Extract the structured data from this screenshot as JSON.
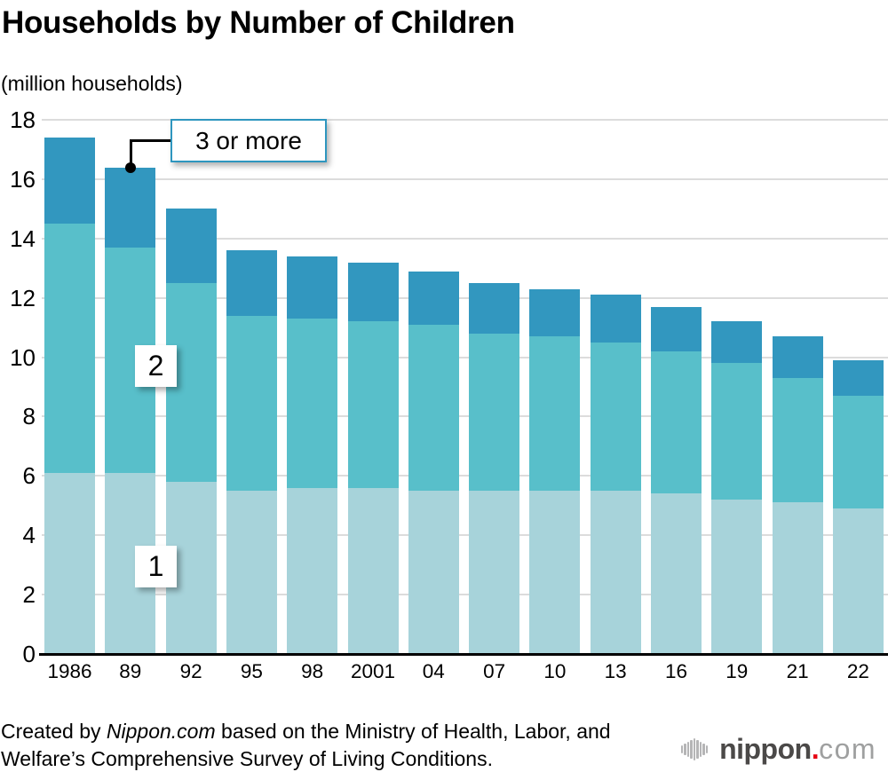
{
  "chart_data": {
    "type": "bar",
    "stacked": true,
    "title": "Households by Number of Children",
    "unit_label": "(million households)",
    "categories": [
      "1986",
      "89",
      "92",
      "95",
      "98",
      "2001",
      "04",
      "07",
      "10",
      "13",
      "16",
      "19",
      "21",
      "22"
    ],
    "series": [
      {
        "name": "1",
        "color": "#a7d3da",
        "values": [
          6.1,
          6.1,
          5.8,
          5.5,
          5.6,
          5.6,
          5.5,
          5.5,
          5.5,
          5.5,
          5.4,
          5.2,
          5.1,
          4.9
        ]
      },
      {
        "name": "2",
        "color": "#58bfca",
        "values": [
          8.4,
          7.6,
          6.7,
          5.9,
          5.7,
          5.6,
          5.6,
          5.3,
          5.2,
          5.0,
          4.8,
          4.6,
          4.2,
          3.8
        ]
      },
      {
        "name": "3 or more",
        "color": "#3297bf",
        "values": [
          2.9,
          2.7,
          2.5,
          2.2,
          2.1,
          2.0,
          1.8,
          1.7,
          1.6,
          1.6,
          1.5,
          1.4,
          1.4,
          1.2
        ]
      }
    ],
    "totals": [
      17.4,
      16.4,
      15.0,
      13.6,
      13.4,
      13.2,
      12.9,
      12.5,
      12.3,
      12.1,
      11.7,
      11.2,
      10.7,
      9.9
    ],
    "ylim": [
      0,
      18
    ],
    "yticks": [
      0,
      2,
      4,
      6,
      8,
      10,
      12,
      14,
      16,
      18
    ],
    "grid": "horizontal",
    "legend_position": "on-chart labels"
  },
  "footer": {
    "line1_prefix": "Created by ",
    "line1_italic": "Nippon.com",
    "line1_rest": " based on the Ministry of Health, Labor, and",
    "line2": "Welfare’s Comprehensive Survey of Living Conditions."
  },
  "logo": {
    "brand": "nippon",
    "dot": ".",
    "tld": "com"
  },
  "colors": {
    "grid": "#dcdcdc",
    "axis": "#000000",
    "callout_border": "#2e96bf",
    "connector": "#000000",
    "logo_brand": "#4b4948",
    "logo_dot": "#e60012",
    "logo_tld": "#9fa0a0",
    "logo_wave": "#b5b5b6"
  }
}
